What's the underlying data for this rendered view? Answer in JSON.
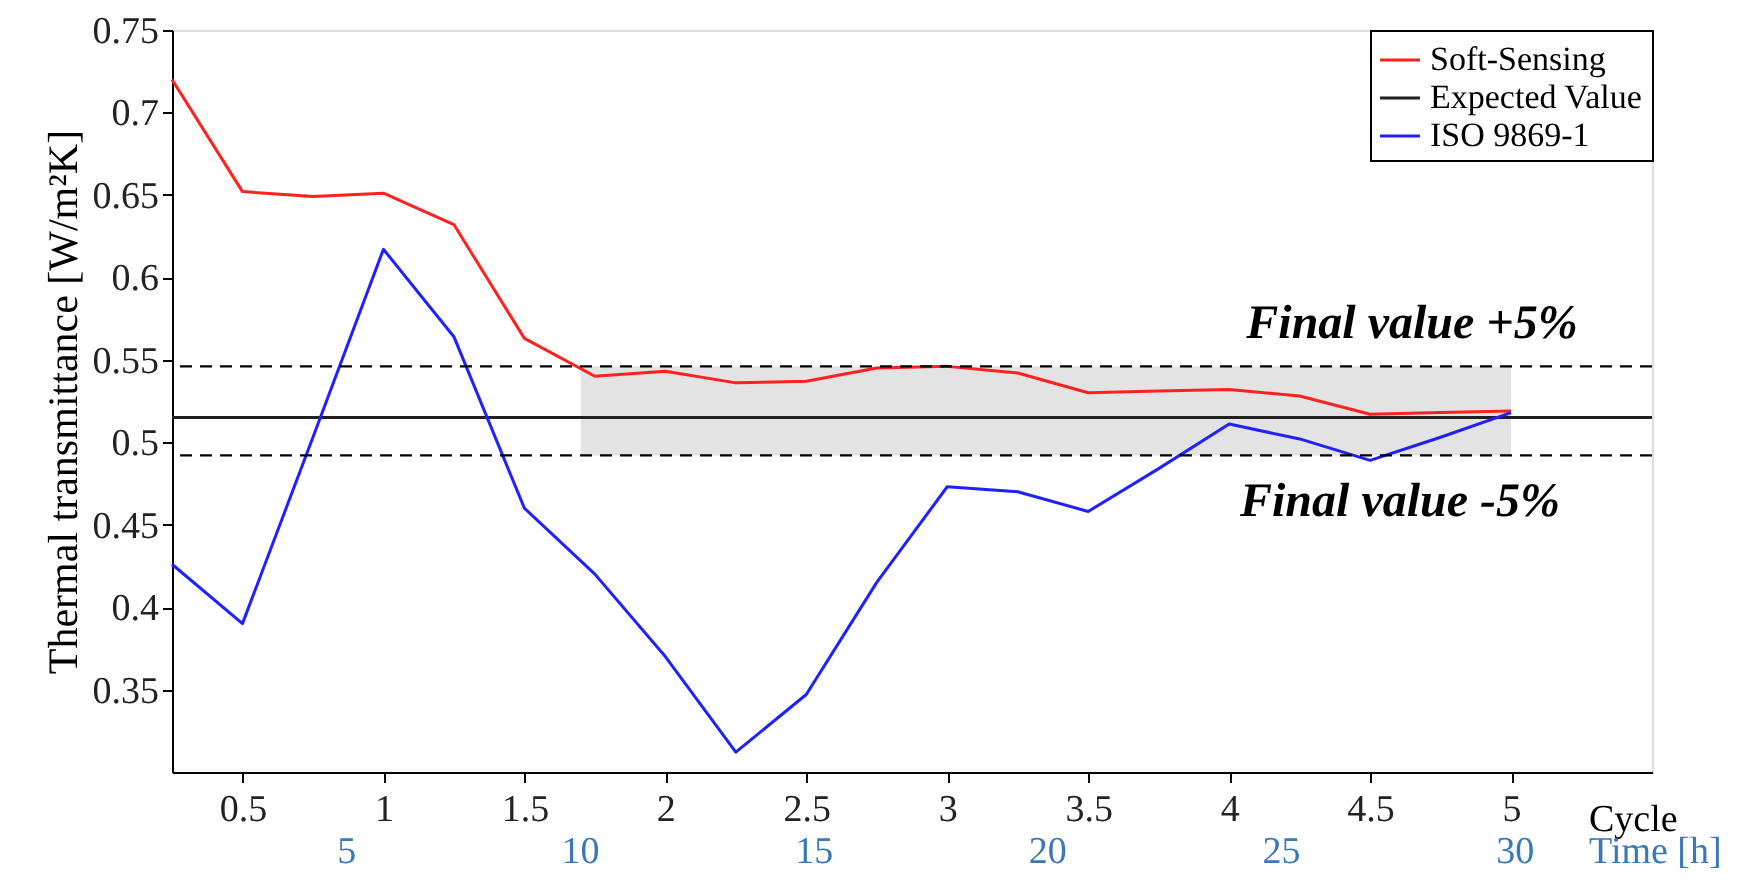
{
  "chart_data": {
    "type": "line",
    "xlabel": "Cycle",
    "ylabel": "Thermal transmittance [W/m²K]",
    "x2label": "Time [h]",
    "x": [
      0.25,
      0.5,
      0.75,
      1,
      1.25,
      1.5,
      1.75,
      2,
      2.25,
      2.5,
      2.75,
      3,
      3.25,
      3.5,
      3.75,
      4,
      4.25,
      4.5,
      4.75,
      5
    ],
    "series": [
      {
        "name": "Soft-Sensing",
        "color": "#ff2020",
        "values": [
          0.72,
          0.652,
          0.649,
          0.651,
          0.632,
          0.563,
          0.54,
          0.543,
          0.536,
          0.537,
          0.545,
          0.546,
          0.542,
          0.53,
          0.531,
          0.532,
          0.528,
          0.517,
          0.518,
          0.519
        ]
      },
      {
        "name": "Expected Value",
        "color": "#202020",
        "x": [
          0.25,
          5.5
        ],
        "values": [
          0.515,
          0.515
        ]
      },
      {
        "name": "ISO 9869-1",
        "color": "#2020ff",
        "values": [
          0.426,
          0.39,
          0.503,
          0.617,
          0.564,
          0.46,
          0.42,
          0.37,
          0.312,
          0.347,
          0.415,
          0.473,
          0.47,
          0.458,
          0.484,
          0.511,
          0.502,
          0.489,
          0.503,
          0.518
        ]
      }
    ],
    "ref_lines": [
      {
        "axis": "y",
        "value": 0.546,
        "line_style": "dashed",
        "color": "#000000"
      },
      {
        "axis": "y",
        "value": 0.492,
        "line_style": "dashed",
        "color": "#000000"
      }
    ],
    "bands": [
      {
        "axis": "x",
        "from": 1.7,
        "to": 5,
        "color": "#d0d0d0"
      }
    ],
    "annotations": [
      "Final value +5%",
      "Final value -5%"
    ],
    "xlim": [
      0.25,
      5.5
    ],
    "xticks": [
      0.5,
      1,
      1.5,
      2,
      2.5,
      3,
      3.5,
      4,
      4.5,
      5
    ],
    "x2lim": [
      1.28,
      32.95
    ],
    "x2ticks": [
      5,
      10,
      15,
      20,
      25,
      30
    ],
    "ylim": [
      0.3,
      0.75
    ],
    "yticks": [
      0.35,
      0.4,
      0.45,
      0.5,
      0.55,
      0.6,
      0.65,
      0.7,
      0.75
    ],
    "grid": false,
    "legend": "top right",
    "marker": "none",
    "line_style": "solid"
  }
}
